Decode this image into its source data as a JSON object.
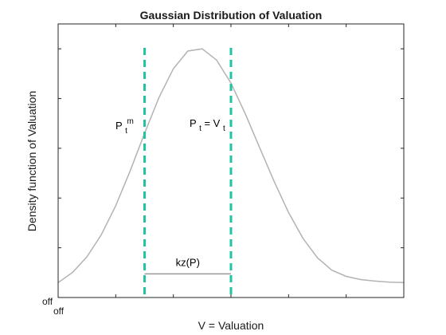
{
  "chart_data": {
    "type": "line",
    "title": "Gaussian Distribution of Valuation",
    "xlabel": "V = Valuation",
    "ylabel": "Density function of Valuation",
    "x_tick_label": "off",
    "y_tick_label": "off",
    "xlim": [
      -3,
      3
    ],
    "ylim": [
      0,
      1.1
    ],
    "grid": false,
    "legend": "none",
    "series": [
      {
        "x": [
          -3.0,
          -2.75,
          -2.5,
          -2.25,
          -2.0,
          -1.75,
          -1.5,
          -1.25,
          -1.0,
          -0.75,
          -0.5,
          -0.25,
          0.0,
          0.25,
          0.5,
          0.75,
          1.0,
          1.25,
          1.5,
          1.75,
          2.0,
          2.25,
          2.5,
          2.75,
          3.0
        ],
        "y": [
          0.06,
          0.101,
          0.164,
          0.253,
          0.369,
          0.509,
          0.66,
          0.804,
          0.92,
          0.991,
          1.0,
          0.955,
          0.862,
          0.738,
          0.601,
          0.466,
          0.342,
          0.238,
          0.16,
          0.11,
          0.085,
          0.072,
          0.066,
          0.062,
          0.06
        ]
      }
    ],
    "vertical_lines": [
      {
        "x": -1.5,
        "style": "dashed",
        "color": "#20c4a0"
      },
      {
        "x": 0.0,
        "style": "dashed",
        "color": "#20c4a0"
      }
    ],
    "bracket": {
      "x1": -1.5,
      "x2": 0.0,
      "y": 0.095,
      "label": "kz(P)"
    },
    "annotations": {
      "left_base": "P",
      "left_sub": "t",
      "left_sup": "m",
      "right_base": "P",
      "right_sub": "t",
      "right_mid": " = V",
      "right_sub2": "t"
    },
    "colors": {
      "curve": "#b3b3b3",
      "dash": "#20c4a0",
      "bracket": "#999999",
      "axes": "#262626"
    }
  }
}
